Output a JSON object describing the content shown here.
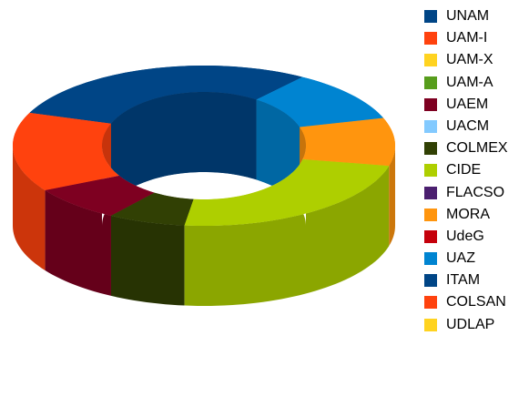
{
  "chart_data": {
    "type": "pie",
    "variant": "3d-donut",
    "title": "",
    "legend_placement": "right",
    "categories": [
      "UNAM",
      "UAM-I",
      "UAM-X",
      "UAM-A",
      "UAEM",
      "UACM",
      "COLMEX",
      "CIDE",
      "FLACSO",
      "MORA",
      "UdeG",
      "UAZ",
      "ITAM",
      "COLSAN",
      "UDLAP"
    ],
    "values": [
      25,
      15,
      0,
      0,
      7,
      0,
      6,
      21,
      0,
      9,
      0,
      10,
      0,
      0,
      0
    ],
    "colors": [
      "#004586",
      "#ff420e",
      "#ffd320",
      "#579d1c",
      "#7e0021",
      "#83caff",
      "#314004",
      "#aecf00",
      "#4b1f6f",
      "#ff950e",
      "#c5000b",
      "#0084d1",
      "#004586",
      "#ff420e",
      "#ffd320"
    ]
  }
}
